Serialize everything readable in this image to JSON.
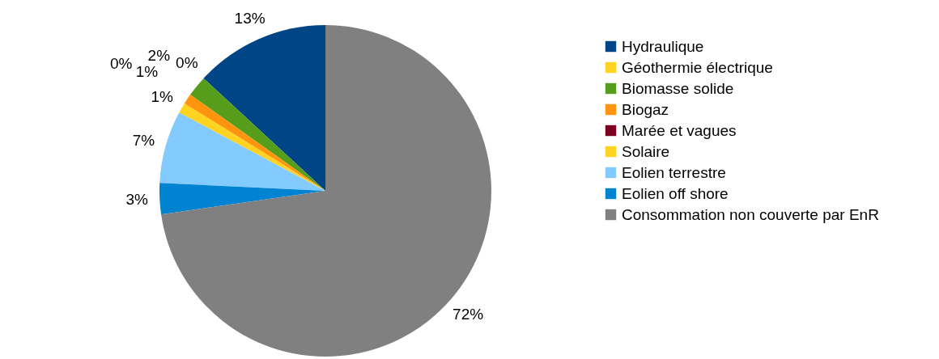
{
  "chart_data": {
    "type": "pie",
    "categories": [
      "Hydraulique",
      "Géothermie électrique",
      "Biomasse solide",
      "Biogaz",
      "Marée et vagues",
      "Solaire",
      "Eolien terrestre",
      "Eolien off shore",
      "Consommation non couverte par EnR"
    ],
    "values": [
      13,
      0,
      2,
      1,
      0,
      1,
      7,
      3,
      72
    ],
    "value_labels": [
      "13%",
      "0%",
      "2%",
      "1%",
      "0%",
      "1%",
      "7%",
      "3%",
      "72%"
    ],
    "colors": [
      "#004586",
      "#ffd320",
      "#579d1c",
      "#ff950e",
      "#7e0021",
      "#ffd320",
      "#83caff",
      "#0084d1",
      "#808080"
    ],
    "legend": "right"
  }
}
